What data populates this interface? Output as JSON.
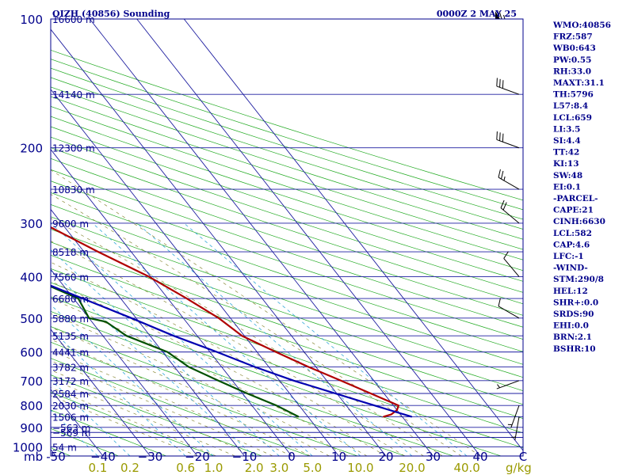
{
  "chart_data": {
    "type": "line",
    "title_left": "QIZH (40856) Sounding",
    "title_right": "0000Z  2 MAY 25",
    "pressure_axis": {
      "unit_label": "mb",
      "ticks": [
        {
          "p": 100,
          "label": "100"
        },
        {
          "p": 200,
          "label": "200"
        },
        {
          "p": 300,
          "label": "300"
        },
        {
          "p": 400,
          "label": "400"
        },
        {
          "p": 500,
          "label": "500"
        },
        {
          "p": 600,
          "label": "600"
        },
        {
          "p": 700,
          "label": "700"
        },
        {
          "p": 800,
          "label": "800"
        },
        {
          "p": 900,
          "label": "900"
        },
        {
          "p": 1000,
          "label": "1000"
        }
      ]
    },
    "temperature_axis": {
      "unit_label": "C",
      "ticks": [
        {
          "t": -50,
          "label": "-50"
        },
        {
          "t": -40,
          "label": "−40"
        },
        {
          "t": -30,
          "label": "−30"
        },
        {
          "t": -20,
          "label": "−20"
        },
        {
          "t": -10,
          "label": "−10"
        },
        {
          "t": 0,
          "label": "0"
        },
        {
          "t": 10,
          "label": "10"
        },
        {
          "t": 20,
          "label": "20"
        },
        {
          "t": 30,
          "label": "30"
        },
        {
          "t": 40,
          "label": "40"
        }
      ]
    },
    "mixing_ratio_axis": {
      "unit_label": "g/kg",
      "ticks": [
        {
          "w": 0.1,
          "label": "0.1"
        },
        {
          "w": 0.2,
          "label": "0.2"
        },
        {
          "w": 0.6,
          "label": "0.6"
        },
        {
          "w": 1.0,
          "label": "1.0"
        },
        {
          "w": 2.0,
          "label": "2.0"
        },
        {
          "w": 3.0,
          "label": "3.0"
        },
        {
          "w": 5.0,
          "label": "5.0"
        },
        {
          "w": 10.0,
          "label": "10.0"
        },
        {
          "w": 20.0,
          "label": "20.0"
        },
        {
          "w": 40.0,
          "label": "40.0"
        }
      ]
    },
    "height_levels": [
      {
        "p": 100,
        "label": "16600 m"
      },
      {
        "p": 150,
        "label": "14140 m"
      },
      {
        "p": 200,
        "label": "12300 m"
      },
      {
        "p": 250,
        "label": "10830 m"
      },
      {
        "p": 300,
        "label": "9600 m"
      },
      {
        "p": 350,
        "label": "8518 m"
      },
      {
        "p": 400,
        "label": "7560 m"
      },
      {
        "p": 450,
        "label": "6680 m"
      },
      {
        "p": 500,
        "label": "5880 m"
      },
      {
        "p": 550,
        "label": "5135 m"
      },
      {
        "p": 600,
        "label": "4441 m"
      },
      {
        "p": 650,
        "label": "3782 m"
      },
      {
        "p": 700,
        "label": "3172 m"
      },
      {
        "p": 750,
        "label": "2584 m"
      },
      {
        "p": 800,
        "label": "2030 m"
      },
      {
        "p": 850,
        "label": "1506 m"
      },
      {
        "p": 900,
        "label": "−563 m"
      },
      {
        "p": 925,
        "label": "−569 m"
      },
      {
        "p": 1000,
        "label": "54 m"
      }
    ],
    "series": [
      {
        "color": "#b00000",
        "points": [
          {
            "p": 850,
            "t": 26
          },
          {
            "p": 840,
            "t": 28
          },
          {
            "p": 820,
            "t": 30
          },
          {
            "p": 800,
            "t": 31.1
          },
          {
            "p": 760,
            "t": 28
          },
          {
            "p": 700,
            "t": 23
          },
          {
            "p": 650,
            "t": 18.4
          },
          {
            "p": 600,
            "t": 14
          },
          {
            "p": 550,
            "t": 9.5
          },
          {
            "p": 500,
            "t": 7.5
          },
          {
            "p": 450,
            "t": 4
          },
          {
            "p": 400,
            "t": -0.4
          },
          {
            "p": 350,
            "t": -7
          },
          {
            "p": 300,
            "t": -14
          },
          {
            "p": 260,
            "t": -20.2
          },
          {
            "p": 250,
            "t": -21
          },
          {
            "p": 220,
            "t": -24.5
          },
          {
            "p": 200,
            "t": -28.4
          },
          {
            "p": 150,
            "t": -39
          },
          {
            "p": 100,
            "t": -53
          }
        ]
      },
      {
        "color": "#005000",
        "points": [
          {
            "p": 850,
            "t": 8
          },
          {
            "p": 800,
            "t": 5.2
          },
          {
            "p": 750,
            "t": 1
          },
          {
            "p": 700,
            "t": -3
          },
          {
            "p": 650,
            "t": -7
          },
          {
            "p": 600,
            "t": -9
          },
          {
            "p": 550,
            "t": -15
          },
          {
            "p": 510,
            "t": -17
          },
          {
            "p": 500,
            "t": -20
          },
          {
            "p": 450,
            "t": -19
          },
          {
            "p": 400,
            "t": -26
          },
          {
            "p": 350,
            "t": -30
          },
          {
            "p": 300,
            "t": -40
          },
          {
            "p": 250,
            "t": -48
          },
          {
            "p": 220,
            "t": -52
          },
          {
            "p": 200,
            "t": -57
          },
          {
            "p": 150,
            "t": -66
          },
          {
            "p": 100,
            "t": -82
          }
        ]
      },
      {
        "color": "#0000b0",
        "points": [
          {
            "p": 850,
            "t": 32
          },
          {
            "p": 800,
            "t": 26
          },
          {
            "p": 700,
            "t": 13
          },
          {
            "p": 650,
            "t": 7
          },
          {
            "p": 600,
            "t": 1.5
          },
          {
            "p": 550,
            "t": -5
          },
          {
            "p": 500,
            "t": -11
          },
          {
            "p": 400,
            "t": -26
          },
          {
            "p": 300,
            "t": -44
          },
          {
            "p": 250,
            "t": -53
          },
          {
            "p": 200,
            "t": -63
          },
          {
            "p": 150,
            "t": -75
          },
          {
            "p": 110,
            "t": -84
          }
        ]
      }
    ],
    "wind_barbs": [
      {
        "p": 100,
        "dir": 270,
        "spd": 65
      },
      {
        "p": 150,
        "dir": 290,
        "spd": 30
      },
      {
        "p": 200,
        "dir": 290,
        "spd": 30
      },
      {
        "p": 250,
        "dir": 300,
        "spd": 25
      },
      {
        "p": 300,
        "dir": 310,
        "spd": 20
      },
      {
        "p": 400,
        "dir": 320,
        "spd": 10
      },
      {
        "p": 500,
        "dir": 300,
        "spd": 10
      },
      {
        "p": 700,
        "dir": 250,
        "spd": 5
      },
      {
        "p": 800,
        "dir": 200,
        "spd": 5
      },
      {
        "p": 850,
        "dir": 190,
        "spd": 5
      }
    ],
    "indices": [
      "WMO:40856",
      "FRZ:587",
      "WB0:643",
      "PW:0.55",
      "RH:33.0",
      "MAXT:31.1",
      "TH:5796",
      "L57:8.4",
      "LCL:659",
      "LI:3.5",
      "SI:4.4",
      "TT:42",
      "KI:13",
      "SW:48",
      "EI:0.1",
      "-PARCEL-",
      "CAPE:21",
      "CINH:6630",
      "LCL:582",
      "CAP:4.6",
      "LFC:-1",
      "-WIND-",
      "STM:290/8",
      "HEL:12",
      "SHR+:0.0",
      "SRDS:90",
      "EHI:0.0",
      "BRN:2.1",
      "BSHR:10"
    ]
  }
}
